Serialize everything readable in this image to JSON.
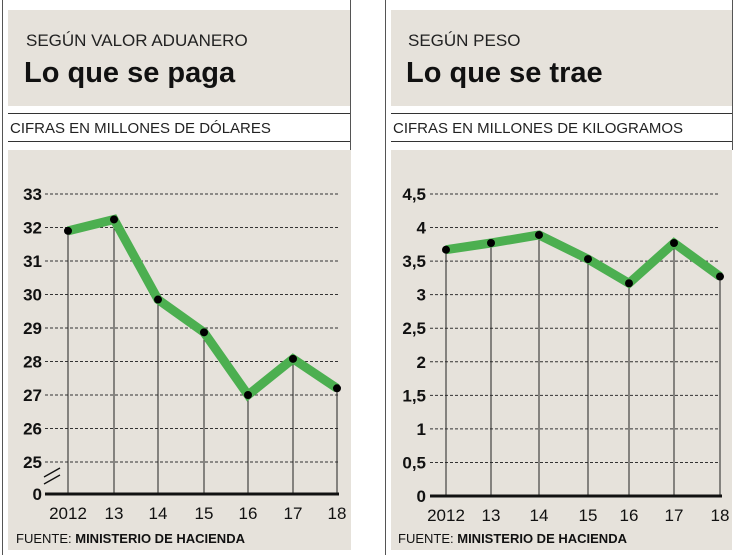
{
  "colors": {
    "line": "#4caf50",
    "panel": "#e6e2db",
    "marker": "#000000"
  },
  "chart_data": [
    {
      "type": "line",
      "kicker": "SEGÚN VALOR ADUANERO",
      "title": "Lo que se paga",
      "unit_label": "CIFRAS EN MILLONES DE DÓLARES",
      "categories": [
        "2012",
        "13",
        "14",
        "15",
        "16",
        "17",
        "18"
      ],
      "values": [
        31.9,
        32.24,
        29.85,
        28.87,
        27.0,
        28.08,
        27.2
      ],
      "yticks": [
        "0",
        "25",
        "26",
        "27",
        "28",
        "29",
        "30",
        "31",
        "32",
        "33"
      ],
      "ylim": [
        25,
        33
      ],
      "axis_break": true,
      "grid": true,
      "source_prefix": "FUENTE: ",
      "source": "MINISTERIO DE HACIENDA"
    },
    {
      "type": "line",
      "kicker": "SEGÚN PESO",
      "title": "Lo que se trae",
      "unit_label": "CIFRAS EN MILLONES DE KILOGRAMOS",
      "categories": [
        "2012",
        "13",
        "14",
        "15",
        "16",
        "17",
        "18"
      ],
      "values": [
        3.67,
        3.77,
        3.89,
        3.53,
        3.17,
        3.77,
        3.27
      ],
      "yticks": [
        "0",
        "0,5",
        "1",
        "1,5",
        "2",
        "2,5",
        "3",
        "3,5",
        "4",
        "4,5"
      ],
      "ylim": [
        0,
        4.5
      ],
      "grid": true,
      "source_prefix": "FUENTE: ",
      "source": "MINISTERIO DE HACIENDA"
    }
  ]
}
